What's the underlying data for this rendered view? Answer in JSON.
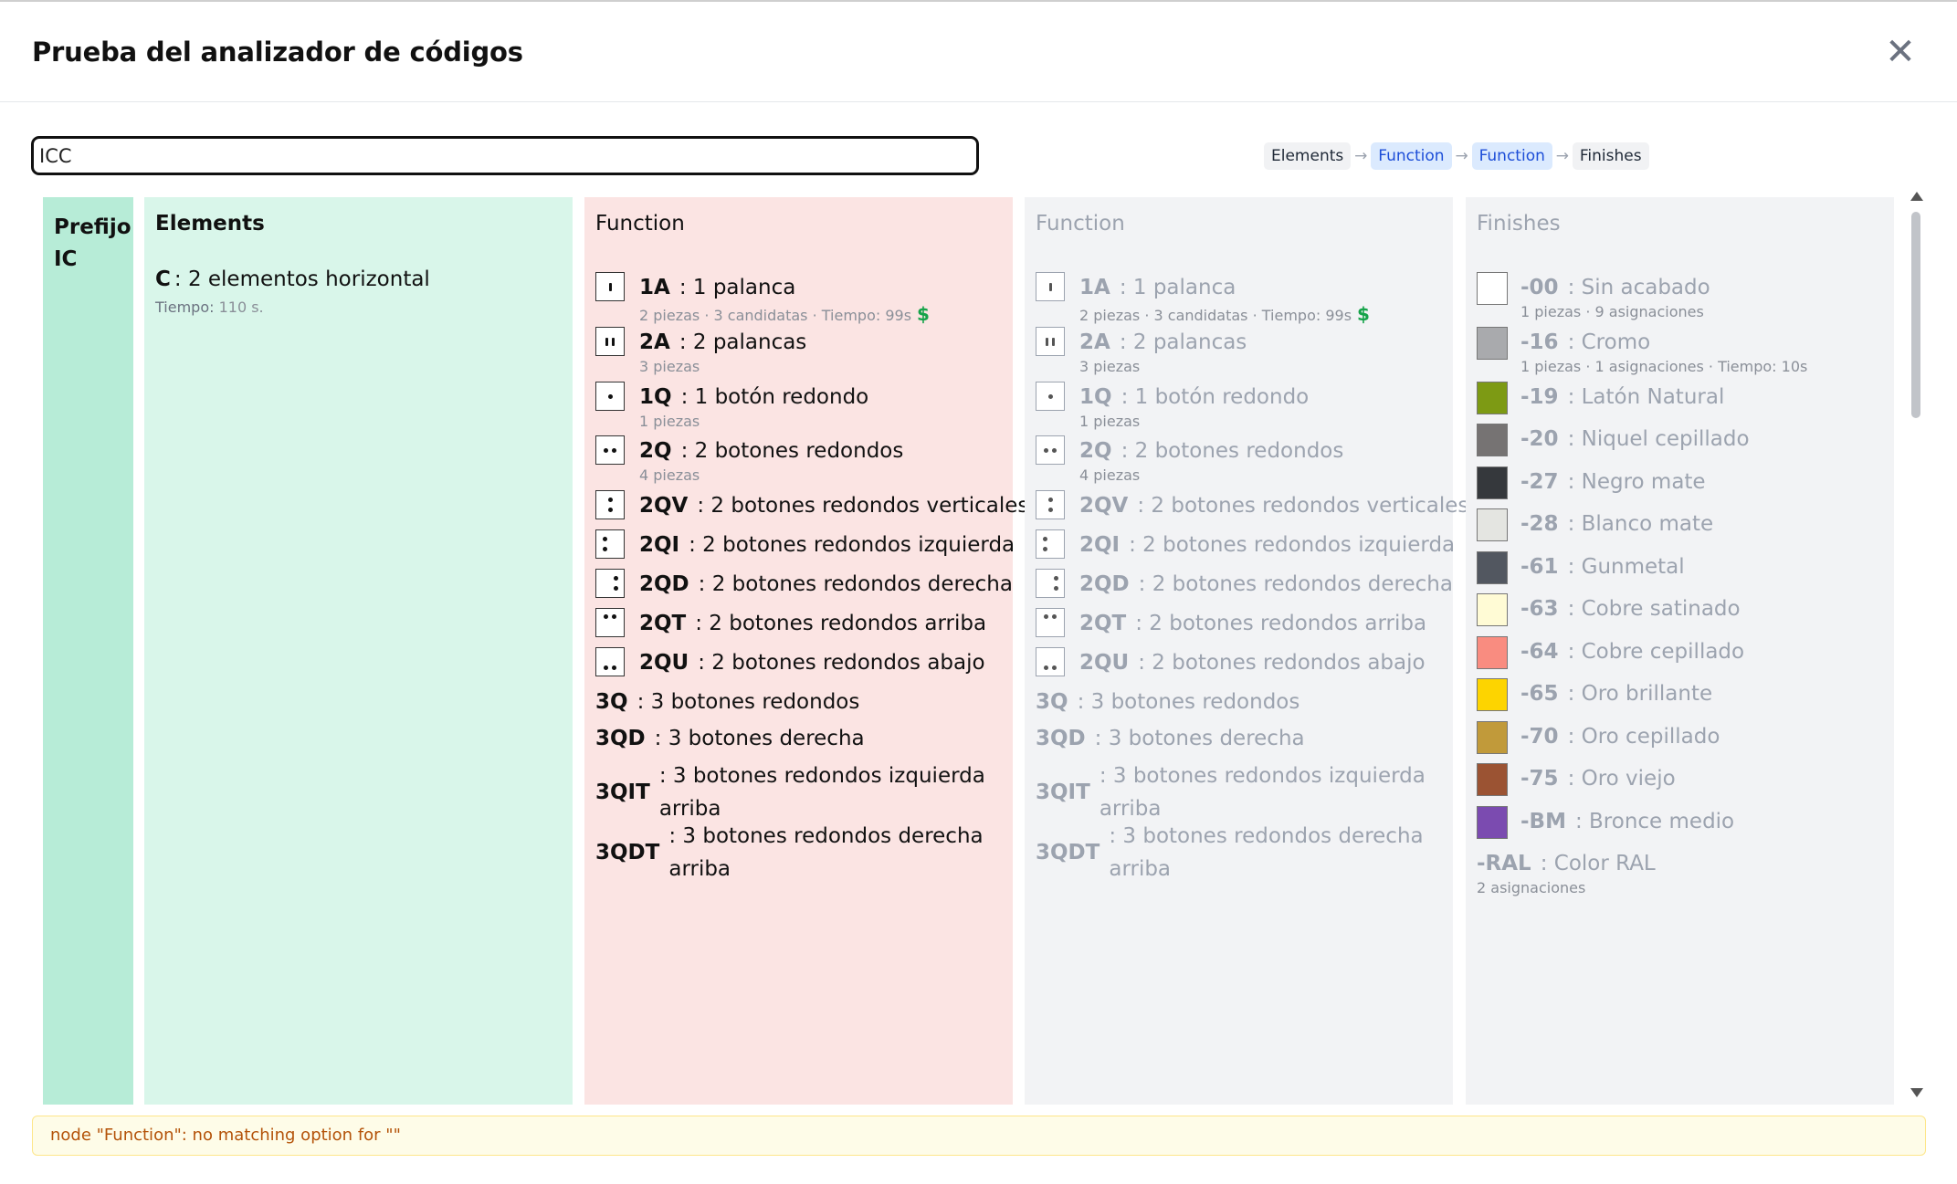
{
  "modal": {
    "title": "Prueba del analizador de códigos",
    "close_glyph": "✕"
  },
  "search": {
    "value": "ICC"
  },
  "breadcrumb": [
    {
      "label": "Elements",
      "active": false
    },
    {
      "label": "Function",
      "active": true
    },
    {
      "label": "Function",
      "active": true
    },
    {
      "label": "Finishes",
      "active": false
    }
  ],
  "breadcrumb_arrow": "→",
  "columns": {
    "prefix": {
      "title_line1": "Prefijo",
      "title_line2": "IC"
    },
    "elements": {
      "title": "Elements",
      "item_code": "C",
      "item_label": ": 2 elementos horizontal",
      "item_sub_key": "Tiempo:",
      "item_sub_val": "110 s."
    },
    "function1": {
      "title": "Function"
    },
    "function2": {
      "title": "Function"
    },
    "finishes": {
      "title": "Finishes"
    }
  },
  "functions": [
    {
      "code": "1A",
      "label": ": 1 palanca",
      "sub": "2 piezas · 3 candidatas · Tiempo: 99s",
      "dollar": "$",
      "icon": "one-lever-icon"
    },
    {
      "code": "2A",
      "label": ": 2 palancas",
      "sub": "3 piezas",
      "icon": "two-levers-icon"
    },
    {
      "code": "1Q",
      "label": ": 1 botón redondo",
      "sub": "1 piezas",
      "icon": "one-button-icon"
    },
    {
      "code": "2Q",
      "label": ": 2 botones redondos",
      "sub": "4 piezas",
      "icon": "two-buttons-icon"
    },
    {
      "code": "2QV",
      "label": ": 2 botones redondos verticales",
      "icon": "two-buttons-vertical-icon"
    },
    {
      "code": "2QI",
      "label": ": 2 botones redondos izquierda",
      "icon": "two-buttons-left-icon"
    },
    {
      "code": "2QD",
      "label": ": 2 botones redondos derecha",
      "icon": "two-buttons-right-icon"
    },
    {
      "code": "2QT",
      "label": ": 2 botones redondos arriba",
      "icon": "two-buttons-top-icon"
    },
    {
      "code": "2QU",
      "label": ": 2 botones redondos abajo",
      "icon": "two-buttons-bottom-icon"
    },
    {
      "code": "3Q",
      "label": ": 3 botones redondos"
    },
    {
      "code": "3QD",
      "label": ": 3 botones derecha"
    },
    {
      "code": "3QIT",
      "label_l1": ": 3 botones redondos izquierda",
      "label_l2": "arriba"
    },
    {
      "code": "3QDT",
      "label_l1": ": 3 botones redondos derecha",
      "label_l2": "arriba"
    }
  ],
  "finishes": [
    {
      "code": "-00",
      "label": ": Sin acabado",
      "sub": "1 piezas · 9 asignaciones",
      "color": "#ffffff"
    },
    {
      "code": "-16",
      "label": ": Cromo",
      "sub": "1 piezas · 1 asignaciones · Tiempo: 10s",
      "color": "#a9aaad"
    },
    {
      "code": "-19",
      "label": ": Latón Natural",
      "color": "#7d9a14"
    },
    {
      "code": "-20",
      "label": ": Niquel cepillado",
      "color": "#767373"
    },
    {
      "code": "-27",
      "label": ": Negro mate",
      "color": "#35383c"
    },
    {
      "code": "-28",
      "label": ": Blanco mate",
      "color": "#e4e5e1"
    },
    {
      "code": "-61",
      "label": ": Gunmetal",
      "color": "#525760"
    },
    {
      "code": "-63",
      "label": ": Cobre satinado",
      "color": "#fffbd5"
    },
    {
      "code": "-64",
      "label": ": Cobre cepillado",
      "color": "#f98c80"
    },
    {
      "code": "-65",
      "label": ": Oro brillante",
      "color": "#fdd400"
    },
    {
      "code": "-70",
      "label": ": Oro cepillado",
      "color": "#c19a3a"
    },
    {
      "code": "-75",
      "label": ": Oro viejo",
      "color": "#9b5333"
    },
    {
      "code": "-BM",
      "label": ": Bronce medio",
      "color": "#7b4bb0"
    },
    {
      "code": "-RAL",
      "label": ": Color RAL",
      "sub": "2 asignaciones"
    }
  ],
  "error": {
    "message": "node \"Function\": no matching option for \"\""
  }
}
